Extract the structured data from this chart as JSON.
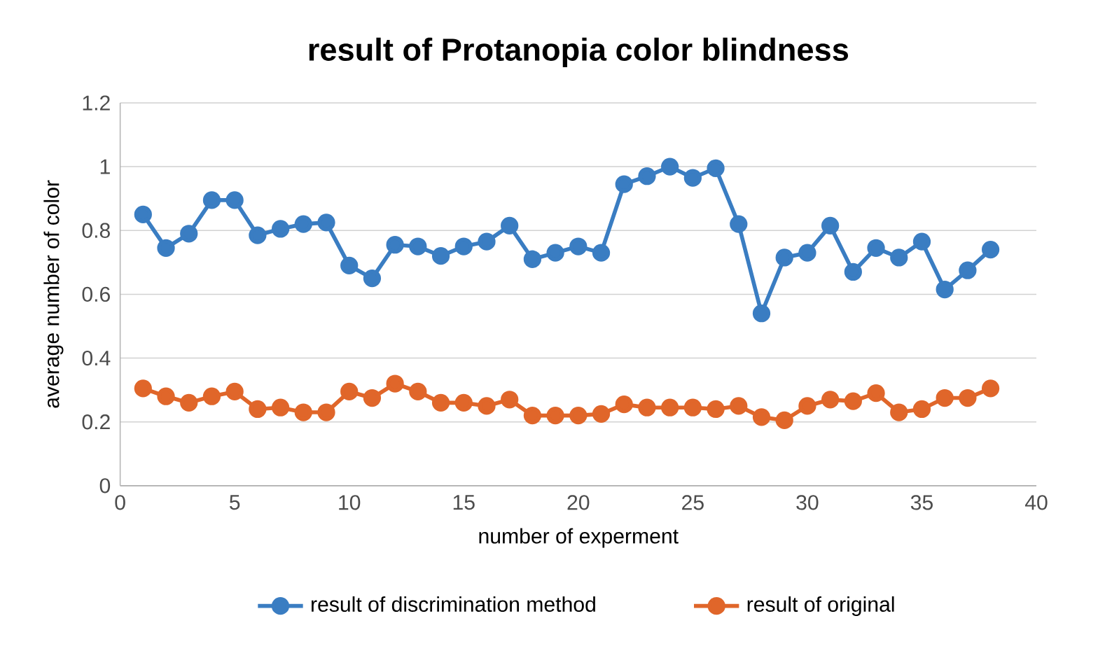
{
  "chart_data": {
    "type": "line",
    "title": "result of Protanopia  color blindness",
    "xlabel": "number  of experment",
    "ylabel": "average number of color",
    "x": [
      1,
      2,
      3,
      4,
      5,
      6,
      7,
      8,
      9,
      10,
      11,
      12,
      13,
      14,
      15,
      16,
      17,
      18,
      19,
      20,
      21,
      22,
      23,
      24,
      25,
      26,
      27,
      28,
      29,
      30,
      31,
      32,
      33,
      34,
      35,
      36,
      37,
      38
    ],
    "series": [
      {
        "name": "result of discrimination method",
        "color": "#3a7dc2",
        "values": [
          0.85,
          0.745,
          0.79,
          0.895,
          0.895,
          0.785,
          0.805,
          0.82,
          0.825,
          0.69,
          0.65,
          0.755,
          0.75,
          0.72,
          0.75,
          0.765,
          0.815,
          0.71,
          0.73,
          0.75,
          0.73,
          0.945,
          0.97,
          1.0,
          0.965,
          0.995,
          0.82,
          0.54,
          0.715,
          0.73,
          0.815,
          0.67,
          0.745,
          0.715,
          0.765,
          0.615,
          0.675,
          0.74
        ]
      },
      {
        "name": "result of original",
        "color": "#e0662a",
        "values": [
          0.305,
          0.28,
          0.26,
          0.28,
          0.295,
          0.24,
          0.245,
          0.23,
          0.23,
          0.295,
          0.275,
          0.32,
          0.295,
          0.26,
          0.26,
          0.25,
          0.27,
          0.22,
          0.22,
          0.22,
          0.225,
          0.255,
          0.245,
          0.245,
          0.245,
          0.24,
          0.25,
          0.215,
          0.205,
          0.25,
          0.27,
          0.265,
          0.29,
          0.23,
          0.24,
          0.275,
          0.275,
          0.305
        ]
      }
    ],
    "xlim": [
      0,
      40
    ],
    "xticks": [
      0,
      5,
      10,
      15,
      20,
      25,
      30,
      35,
      40
    ],
    "ylim": [
      0,
      1.2
    ],
    "yticks": [
      {
        "value": 0,
        "label": "0"
      },
      {
        "value": 0.2,
        "label": "0.2"
      },
      {
        "value": 0.4,
        "label": "0.4"
      },
      {
        "value": 0.6,
        "label": "0.6"
      },
      {
        "value": 0.8,
        "label": "0.8"
      },
      {
        "value": 1,
        "label": "1"
      },
      {
        "value": 1.2,
        "label": "1.2"
      }
    ],
    "grid": "y",
    "legend": "bottom",
    "marker": "circle",
    "line_style": "solid"
  }
}
